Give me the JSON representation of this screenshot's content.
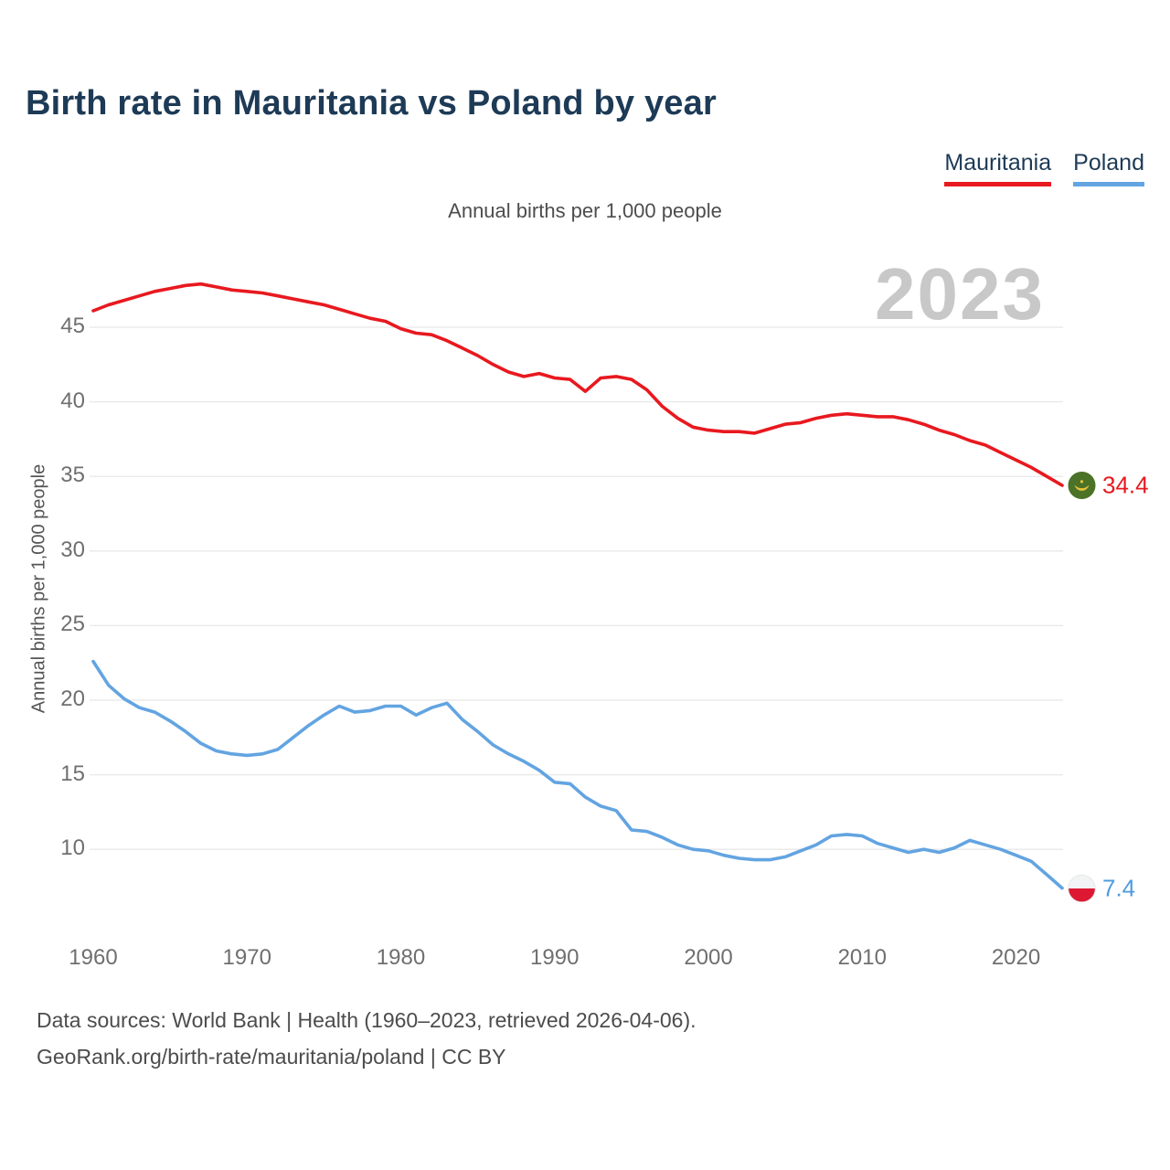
{
  "header": {
    "title": "Birth rate in Mauritania vs Poland by year"
  },
  "legend": {
    "items": [
      {
        "label": "Mauritania",
        "color": "#e8191f"
      },
      {
        "label": "Poland",
        "color": "#63a4e1"
      }
    ]
  },
  "subtitle": "Annual births per 1,000 people",
  "watermark_year": "2023",
  "chart_data": {
    "type": "line",
    "title": "Birth rate in Mauritania vs Poland by year",
    "xlabel": "",
    "ylabel": "Annual births per 1,000 people",
    "grid": true,
    "legend_position": "top-right",
    "xlim": [
      1960,
      2023
    ],
    "ylim": [
      6.5,
      49
    ],
    "yticks": [
      10,
      15,
      20,
      25,
      30,
      35,
      40,
      45
    ],
    "xticks": [
      1960,
      1970,
      1980,
      1990,
      2000,
      2010,
      2020
    ],
    "x": [
      1960,
      1961,
      1962,
      1963,
      1964,
      1965,
      1966,
      1967,
      1968,
      1969,
      1970,
      1971,
      1972,
      1973,
      1974,
      1975,
      1976,
      1977,
      1978,
      1979,
      1980,
      1981,
      1982,
      1983,
      1984,
      1985,
      1986,
      1987,
      1988,
      1989,
      1990,
      1991,
      1992,
      1993,
      1994,
      1995,
      1996,
      1997,
      1998,
      1999,
      2000,
      2001,
      2002,
      2003,
      2004,
      2005,
      2006,
      2007,
      2008,
      2009,
      2010,
      2011,
      2012,
      2013,
      2014,
      2015,
      2016,
      2017,
      2018,
      2019,
      2020,
      2021,
      2022,
      2023
    ],
    "series": [
      {
        "name": "Mauritania",
        "color": "#e8191f",
        "end_label": "34.4",
        "values": [
          46.1,
          46.5,
          46.8,
          47.1,
          47.4,
          47.6,
          47.8,
          47.9,
          47.7,
          47.5,
          47.4,
          47.3,
          47.1,
          46.9,
          46.7,
          46.5,
          46.2,
          45.9,
          45.6,
          45.4,
          44.9,
          44.6,
          44.5,
          44.1,
          43.6,
          43.1,
          42.5,
          42.0,
          41.7,
          41.9,
          41.6,
          41.5,
          40.7,
          41.6,
          41.7,
          41.5,
          40.8,
          39.7,
          38.9,
          38.3,
          38.1,
          38.0,
          38.0,
          37.9,
          38.2,
          38.5,
          38.6,
          38.9,
          39.1,
          39.2,
          39.1,
          39.0,
          39.0,
          38.8,
          38.5,
          38.1,
          37.8,
          37.4,
          37.1,
          36.6,
          36.1,
          35.6,
          35.0,
          34.4
        ]
      },
      {
        "name": "Poland",
        "color": "#63a4e1",
        "end_label": "7.4",
        "values": [
          22.6,
          21.0,
          20.1,
          19.5,
          19.2,
          18.6,
          17.9,
          17.1,
          16.6,
          16.4,
          16.3,
          16.4,
          16.7,
          17.5,
          18.3,
          19.0,
          19.6,
          19.2,
          19.3,
          19.6,
          19.6,
          19.0,
          19.5,
          19.8,
          18.7,
          17.9,
          17.0,
          16.4,
          15.9,
          15.3,
          14.5,
          14.4,
          13.5,
          12.9,
          12.6,
          11.3,
          11.2,
          10.8,
          10.3,
          10.0,
          9.9,
          9.6,
          9.4,
          9.3,
          9.3,
          9.5,
          9.9,
          10.3,
          10.9,
          11.0,
          10.9,
          10.4,
          10.1,
          9.8,
          10.0,
          9.8,
          10.1,
          10.6,
          10.3,
          10.0,
          9.6,
          9.2,
          8.3,
          7.4
        ]
      }
    ]
  },
  "footer": {
    "line1": "Data sources: World Bank | Health (1960–2023, retrieved 2026-04-06).",
    "line2": "GeoRank.org/birth-rate/mauritania/poland | CC BY"
  }
}
